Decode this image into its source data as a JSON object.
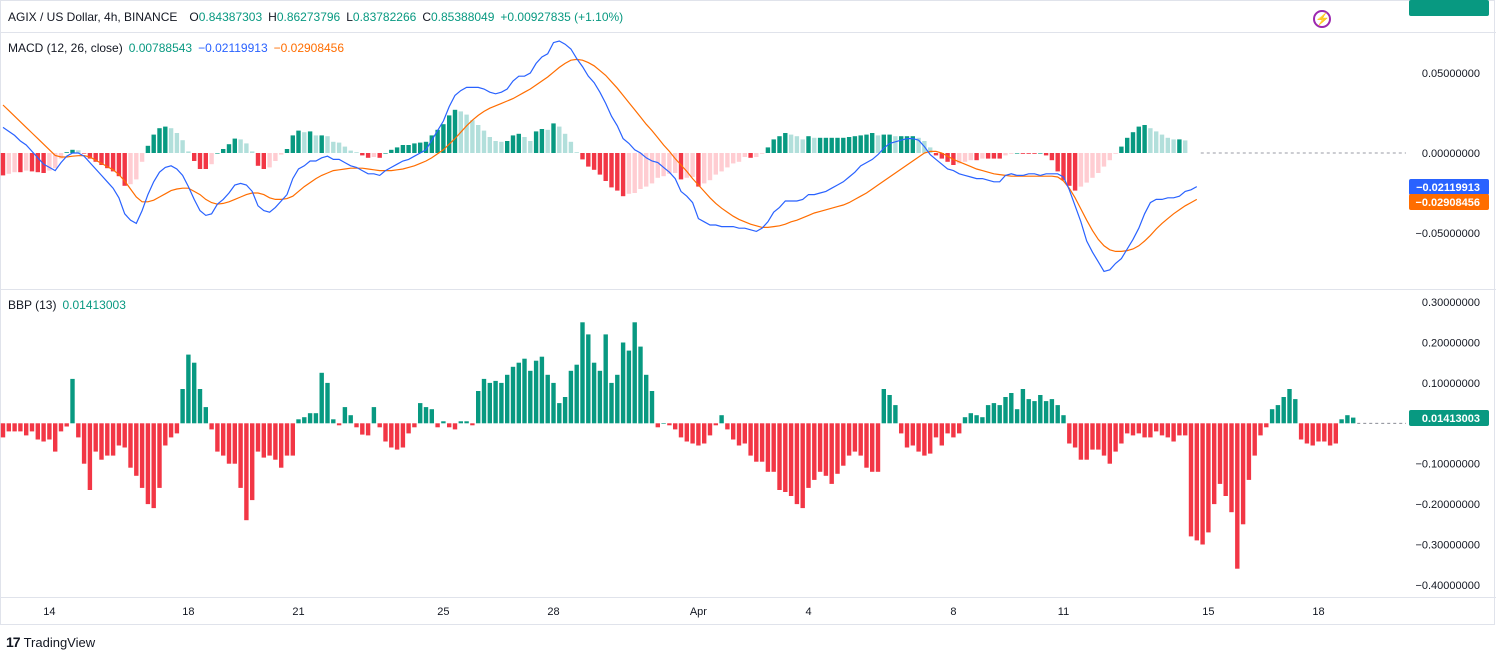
{
  "header": {
    "symbol": "AGIX / US Dollar, 4h, BINANCE",
    "o_label": "O",
    "o": "0.84387303",
    "h_label": "H",
    "h": "0.86273796",
    "l_label": "L",
    "l": "0.83782266",
    "c_label": "C",
    "c": "0.85388049",
    "change": "+0.00927835 (+1.10%)"
  },
  "brand": {
    "name": "TradingView",
    "logo": "17"
  },
  "colors": {
    "up": "#089981",
    "up_light": "#b2dfdb",
    "down": "#f23645",
    "down_light": "#ffcdd2",
    "macd_line": "#2962ff",
    "signal_line": "#ff6d00",
    "grid": "#e0e3eb",
    "text": "#131722"
  },
  "chart_data": [
    {
      "type": "line",
      "pane": "MACD",
      "title": "MACD (12, 26, close)",
      "legend_values": {
        "histogram": "0.00788543",
        "macd": "−0.02119913",
        "signal": "−0.02908456"
      },
      "y_ticks": [
        "0.05000000",
        "0.00000000",
        "−0.05000000"
      ],
      "y_tick_values": [
        0.05,
        0.0,
        -0.05
      ],
      "ylim": [
        -0.085,
        0.075
      ],
      "x_ticks": [
        "14",
        "18",
        "21",
        "25",
        "28",
        "Apr",
        "4",
        "8",
        "11",
        "15",
        "18"
      ],
      "x_tick_bars": [
        8,
        32,
        51,
        76,
        95,
        120,
        139,
        164,
        183,
        208,
        227
      ],
      "macd": [
        0.016,
        0.0135,
        0.011,
        0.0075,
        0.005,
        0.001,
        -0.003,
        -0.007,
        -0.009,
        -0.011,
        -0.006,
        -0.002,
        0.0,
        0.0,
        -0.002,
        -0.006,
        -0.01,
        -0.014,
        -0.018,
        -0.022,
        -0.028,
        -0.038,
        -0.042,
        -0.044,
        -0.036,
        -0.026,
        -0.018,
        -0.012,
        -0.009,
        -0.008,
        -0.01,
        -0.014,
        -0.021,
        -0.029,
        -0.036,
        -0.039,
        -0.038,
        -0.032,
        -0.029,
        -0.025,
        -0.02,
        -0.019,
        -0.02,
        -0.024,
        -0.033,
        -0.036,
        -0.037,
        -0.034,
        -0.03,
        -0.026,
        -0.016,
        -0.01,
        -0.008,
        -0.005,
        -0.005,
        -0.003,
        -0.002,
        -0.004,
        -0.004,
        -0.006,
        -0.008,
        -0.009,
        -0.011,
        -0.013,
        -0.013,
        -0.014,
        -0.011,
        -0.009,
        -0.007,
        -0.005,
        -0.004,
        -0.002,
        0.0,
        0.002,
        0.008,
        0.014,
        0.02,
        0.029,
        0.036,
        0.039,
        0.041,
        0.041,
        0.041,
        0.04,
        0.038,
        0.037,
        0.038,
        0.04,
        0.045,
        0.048,
        0.048,
        0.05,
        0.056,
        0.06,
        0.062,
        0.069,
        0.07,
        0.068,
        0.065,
        0.059,
        0.054,
        0.048,
        0.044,
        0.038,
        0.031,
        0.023,
        0.017,
        0.009,
        0.006,
        0.002,
        0.0,
        -0.003,
        -0.005,
        -0.006,
        -0.009,
        -0.012,
        -0.016,
        -0.024,
        -0.027,
        -0.031,
        -0.041,
        -0.043,
        -0.045,
        -0.045,
        -0.046,
        -0.046,
        -0.046,
        -0.047,
        -0.047,
        -0.048,
        -0.049,
        -0.047,
        -0.043,
        -0.037,
        -0.034,
        -0.03,
        -0.03,
        -0.03,
        -0.029,
        -0.026,
        -0.026,
        -0.025,
        -0.024,
        -0.022,
        -0.02,
        -0.018,
        -0.015,
        -0.012,
        -0.008,
        -0.006,
        -0.004,
        -0.001,
        0.003,
        0.006,
        0.007,
        0.008,
        0.009,
        0.009,
        0.008,
        0.004,
        -0.001,
        -0.004,
        -0.007,
        -0.01,
        -0.011,
        -0.013,
        -0.014,
        -0.015,
        -0.016,
        -0.016,
        -0.017,
        -0.018,
        -0.018,
        -0.014,
        -0.013,
        -0.014,
        -0.014,
        -0.013,
        -0.013,
        -0.014,
        -0.013,
        -0.013,
        -0.013,
        -0.015,
        -0.023,
        -0.033,
        -0.043,
        -0.055,
        -0.062,
        -0.068,
        -0.074,
        -0.073,
        -0.069,
        -0.066,
        -0.06,
        -0.054,
        -0.047,
        -0.038,
        -0.031,
        -0.029,
        -0.029,
        -0.028,
        -0.028,
        -0.027,
        -0.024,
        -0.023,
        -0.021
      ],
      "signal": [
        0.03,
        0.0265,
        0.023,
        0.0195,
        0.016,
        0.0125,
        0.009,
        0.0055,
        0.002,
        -0.0015,
        -0.0025,
        -0.0025,
        -0.002,
        -0.0017,
        -0.0016,
        -0.0025,
        -0.0045,
        -0.0065,
        -0.0085,
        -0.0105,
        -0.0135,
        -0.0175,
        -0.0225,
        -0.0275,
        -0.0305,
        -0.0305,
        -0.0295,
        -0.0275,
        -0.0255,
        -0.0235,
        -0.0225,
        -0.022,
        -0.022,
        -0.024,
        -0.026,
        -0.029,
        -0.031,
        -0.032,
        -0.0315,
        -0.0305,
        -0.029,
        -0.0275,
        -0.026,
        -0.025,
        -0.025,
        -0.026,
        -0.028,
        -0.029,
        -0.029,
        -0.0285,
        -0.027,
        -0.024,
        -0.021,
        -0.0185,
        -0.016,
        -0.014,
        -0.0125,
        -0.011,
        -0.0105,
        -0.01,
        -0.0095,
        -0.0095,
        -0.0095,
        -0.01,
        -0.0105,
        -0.011,
        -0.011,
        -0.011,
        -0.0105,
        -0.01,
        -0.009,
        -0.008,
        -0.0065,
        -0.005,
        -0.003,
        -0.0005,
        0.002,
        0.0055,
        0.009,
        0.013,
        0.017,
        0.0205,
        0.0235,
        0.026,
        0.028,
        0.0295,
        0.031,
        0.0325,
        0.034,
        0.036,
        0.038,
        0.04,
        0.0425,
        0.045,
        0.0475,
        0.0505,
        0.0535,
        0.056,
        0.058,
        0.0585,
        0.058,
        0.0565,
        0.0545,
        0.0515,
        0.0485,
        0.0445,
        0.0405,
        0.036,
        0.0315,
        0.027,
        0.0225,
        0.018,
        0.014,
        0.0095,
        0.005,
        0.001,
        -0.0035,
        -0.0075,
        -0.0115,
        -0.016,
        -0.02,
        -0.024,
        -0.028,
        -0.0315,
        -0.0345,
        -0.037,
        -0.0395,
        -0.0415,
        -0.043,
        -0.0445,
        -0.0455,
        -0.0465,
        -0.0465,
        -0.046,
        -0.0455,
        -0.0445,
        -0.043,
        -0.042,
        -0.0405,
        -0.039,
        -0.0375,
        -0.0365,
        -0.0355,
        -0.0345,
        -0.0335,
        -0.0325,
        -0.031,
        -0.029,
        -0.027,
        -0.025,
        -0.0225,
        -0.02,
        -0.0175,
        -0.015,
        -0.0125,
        -0.01,
        -0.0075,
        -0.005,
        -0.0025,
        0.0,
        0.001,
        0.001,
        0.0,
        -0.002,
        -0.004,
        -0.0055,
        -0.007,
        -0.0085,
        -0.01,
        -0.011,
        -0.012,
        -0.013,
        -0.0135,
        -0.014,
        -0.0145,
        -0.0145,
        -0.0145,
        -0.0145,
        -0.0145,
        -0.0145,
        -0.0145,
        -0.0145,
        -0.015,
        -0.0175,
        -0.022,
        -0.028,
        -0.035,
        -0.042,
        -0.0485,
        -0.054,
        -0.058,
        -0.0605,
        -0.0615,
        -0.0615,
        -0.061,
        -0.06,
        -0.058,
        -0.055,
        -0.0515,
        -0.0475,
        -0.044,
        -0.041,
        -0.038,
        -0.0355,
        -0.033,
        -0.031,
        -0.029
      ],
      "histogram": [
        -0.014,
        -0.013,
        -0.012,
        -0.012,
        -0.011,
        -0.0115,
        -0.012,
        -0.0125,
        -0.011,
        -0.0095,
        -0.0035,
        0.0005,
        0.002,
        0.0017,
        -0.0004,
        -0.0035,
        -0.0055,
        -0.0075,
        -0.0095,
        -0.0115,
        -0.0145,
        -0.0205,
        -0.0195,
        -0.0165,
        -0.0055,
        0.0045,
        0.0115,
        0.0155,
        0.0165,
        0.0155,
        0.0125,
        0.008,
        0.001,
        -0.005,
        -0.01,
        -0.01,
        -0.007,
        0.0,
        0.0025,
        0.0055,
        0.009,
        0.0085,
        0.006,
        0.001,
        -0.008,
        -0.01,
        -0.009,
        -0.005,
        -0.001,
        0.0025,
        0.011,
        0.014,
        0.013,
        0.0135,
        0.011,
        0.011,
        0.0105,
        0.007,
        0.0065,
        0.004,
        0.0015,
        0.0005,
        -0.0015,
        -0.003,
        -0.0025,
        -0.003,
        0.0,
        0.002,
        0.0035,
        0.005,
        0.005,
        0.006,
        0.0065,
        0.007,
        0.011,
        0.0145,
        0.018,
        0.0235,
        0.027,
        0.026,
        0.024,
        0.0205,
        0.0175,
        0.014,
        0.01,
        0.0075,
        0.007,
        0.0075,
        0.011,
        0.012,
        0.01,
        0.0075,
        0.0135,
        0.015,
        0.0145,
        0.0185,
        0.0165,
        0.012,
        0.007,
        0.0005,
        -0.004,
        -0.0085,
        -0.0105,
        -0.0135,
        -0.0175,
        -0.0215,
        -0.0235,
        -0.027,
        -0.0255,
        -0.025,
        -0.0225,
        -0.021,
        -0.019,
        -0.0155,
        -0.0145,
        -0.013,
        -0.0125,
        -0.0165,
        -0.0155,
        -0.015,
        -0.021,
        -0.019,
        -0.017,
        -0.0135,
        -0.0115,
        -0.009,
        -0.0065,
        -0.0055,
        -0.0025,
        -0.003,
        -0.0025,
        -0.0005,
        0.0035,
        0.0085,
        0.0105,
        0.0125,
        0.0115,
        0.0105,
        0.0085,
        0.0105,
        0.0095,
        0.0095,
        0.0095,
        0.0095,
        0.0095,
        0.0095,
        0.01,
        0.0105,
        0.011,
        0.0115,
        0.0125,
        0.011,
        0.0115,
        0.0115,
        0.0105,
        0.0105,
        0.0105,
        0.0105,
        0.0095,
        0.0075,
        0.0035,
        -0.0015,
        -0.0035,
        -0.0055,
        -0.0075,
        -0.0065,
        -0.0055,
        -0.0045,
        -0.0045,
        -0.0035,
        -0.0035,
        -0.0035,
        -0.0035,
        -0.0015,
        -0.0005,
        0.0,
        -0.0005,
        -0.0005,
        -0.0005,
        0.0,
        -0.0015,
        -0.0045,
        -0.0115,
        -0.017,
        -0.0205,
        -0.0235,
        -0.021,
        -0.0185,
        -0.0155,
        -0.0125,
        -0.0085,
        -0.0045,
        -0.0005,
        0.004,
        0.0095,
        0.013,
        0.0165,
        0.0175,
        0.0155,
        0.0135,
        0.0115,
        0.0095,
        0.0085,
        0.0085,
        0.0079
      ]
    },
    {
      "type": "bar",
      "pane": "BBP",
      "title": "BBP (13)",
      "legend_value": "0.01413003",
      "y_ticks": [
        "0.30000000",
        "0.20000000",
        "0.10000000",
        "−0.10000000",
        "−0.20000000",
        "−0.30000000",
        "−0.40000000"
      ],
      "y_tick_values": [
        0.3,
        0.2,
        0.1,
        -0.1,
        -0.2,
        -0.3,
        -0.4
      ],
      "ylim": [
        -0.43,
        0.33
      ],
      "values": [
        -0.035,
        -0.02,
        -0.02,
        -0.02,
        -0.03,
        -0.02,
        -0.04,
        -0.045,
        -0.04,
        -0.07,
        -0.02,
        -0.008,
        0.11,
        -0.035,
        -0.1,
        -0.165,
        -0.07,
        -0.09,
        -0.08,
        -0.08,
        -0.055,
        -0.06,
        -0.11,
        -0.13,
        -0.16,
        -0.2,
        -0.21,
        -0.16,
        -0.055,
        -0.035,
        -0.025,
        0.085,
        0.17,
        0.15,
        0.085,
        0.04,
        -0.015,
        -0.07,
        -0.08,
        -0.1,
        -0.1,
        -0.16,
        -0.24,
        -0.19,
        -0.07,
        -0.085,
        -0.08,
        -0.09,
        -0.11,
        -0.08,
        -0.08,
        0.01,
        0.015,
        0.025,
        0.025,
        0.125,
        0.1,
        0.01,
        -0.005,
        0.04,
        0.02,
        -0.01,
        -0.028,
        -0.03,
        0.04,
        -0.01,
        -0.045,
        -0.06,
        -0.065,
        -0.06,
        -0.025,
        -0.01,
        0.05,
        0.04,
        0.035,
        -0.01,
        0.005,
        -0.01,
        -0.015,
        0.005,
        0.005,
        -0.005,
        0.08,
        0.11,
        0.1,
        0.105,
        0.1,
        0.12,
        0.14,
        0.15,
        0.16,
        0.13,
        0.155,
        0.165,
        0.12,
        0.1,
        0.05,
        0.065,
        0.13,
        0.145,
        0.25,
        0.22,
        0.15,
        0.13,
        0.22,
        0.1,
        0.12,
        0.2,
        0.18,
        0.25,
        0.19,
        0.12,
        0.08,
        -0.01,
        0.0,
        -0.005,
        -0.015,
        -0.035,
        -0.045,
        -0.05,
        -0.055,
        -0.05,
        -0.03,
        -0.005,
        0.02,
        -0.015,
        -0.04,
        -0.055,
        -0.05,
        -0.08,
        -0.095,
        -0.095,
        -0.12,
        -0.12,
        -0.165,
        -0.17,
        -0.18,
        -0.2,
        -0.21,
        -0.16,
        -0.14,
        -0.12,
        -0.13,
        -0.15,
        -0.125,
        -0.105,
        -0.08,
        -0.07,
        -0.08,
        -0.11,
        -0.12,
        -0.12,
        0.085,
        0.07,
        0.045,
        -0.025,
        -0.06,
        -0.055,
        -0.07,
        -0.08,
        -0.075,
        -0.035,
        -0.055,
        -0.025,
        -0.035,
        -0.025,
        0.015,
        0.025,
        0.02,
        0.015,
        0.045,
        0.05,
        0.045,
        0.065,
        0.075,
        0.035,
        0.085,
        0.06,
        0.055,
        0.07,
        0.055,
        0.06,
        0.045,
        0.02,
        -0.05,
        -0.06,
        -0.09,
        -0.09,
        -0.065,
        -0.065,
        -0.08,
        -0.1,
        -0.07,
        -0.05,
        -0.025,
        -0.03,
        -0.025,
        -0.035,
        -0.035,
        -0.02,
        -0.03,
        -0.035,
        -0.045,
        -0.03,
        -0.03,
        -0.28,
        -0.29,
        -0.3,
        -0.27,
        -0.2,
        -0.15,
        -0.18,
        -0.22,
        -0.36,
        -0.25,
        -0.14,
        -0.08,
        -0.03,
        -0.01,
        0.035,
        0.045,
        0.065,
        0.085,
        0.06,
        -0.04,
        -0.05,
        -0.055,
        -0.045,
        -0.045,
        -0.055,
        -0.05,
        0.01,
        0.02,
        0.014
      ]
    }
  ]
}
